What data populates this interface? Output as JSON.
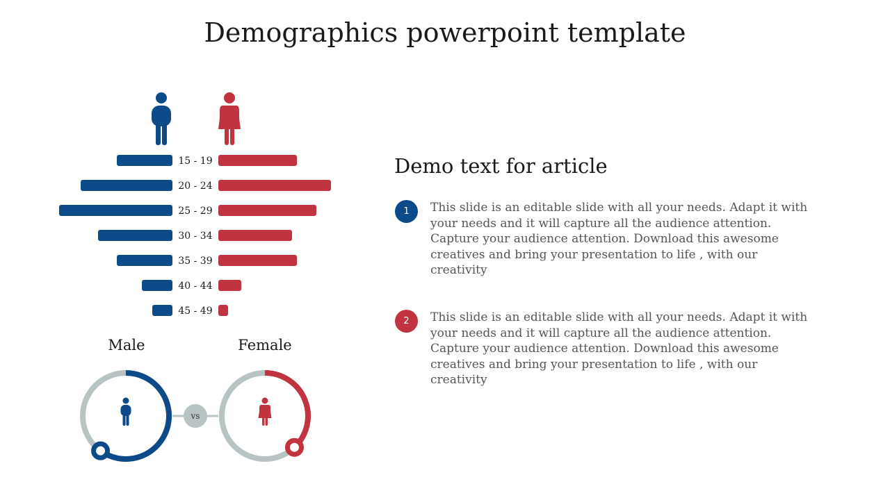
{
  "title": "Demographics powerpoint template",
  "colors": {
    "male": "#0d4a8a",
    "female": "#c0333f",
    "track": "#b8c4c4",
    "text": "#1a1a1a",
    "muted": "#555555"
  },
  "chart_data": {
    "type": "bar",
    "categories": [
      "15 - 19",
      "20 - 24",
      "25 - 29",
      "30 - 34",
      "35 - 39",
      "40 - 44",
      "45 - 49"
    ],
    "series": [
      {
        "name": "Male",
        "values": [
          80,
          132,
          163,
          107,
          80,
          44,
          29
        ]
      },
      {
        "name": "Female",
        "values": [
          113,
          162,
          141,
          106,
          113,
          33,
          14
        ]
      }
    ]
  },
  "gender_compare": {
    "male_label": "Male",
    "female_label": "Female",
    "vs_label": "vs",
    "male_fraction": 0.6,
    "female_fraction": 0.38
  },
  "icons": {
    "male": "male-person-icon",
    "female": "female-person-icon"
  },
  "article": {
    "title": "Demo text for article",
    "points": [
      {
        "number": "1",
        "text": "This slide is an editable slide with all your needs. Adapt it with your needs and it will capture all the audience attention. Capture your audience attention. Download this awesome creatives and bring your presentation to life , with our creativity"
      },
      {
        "number": "2",
        "text": "This slide is an editable slide with all your needs. Adapt it with your needs and it will capture all the audience attention. Capture your audience attention. Download this awesome creatives and bring your presentation to life , with our creativity"
      }
    ]
  }
}
